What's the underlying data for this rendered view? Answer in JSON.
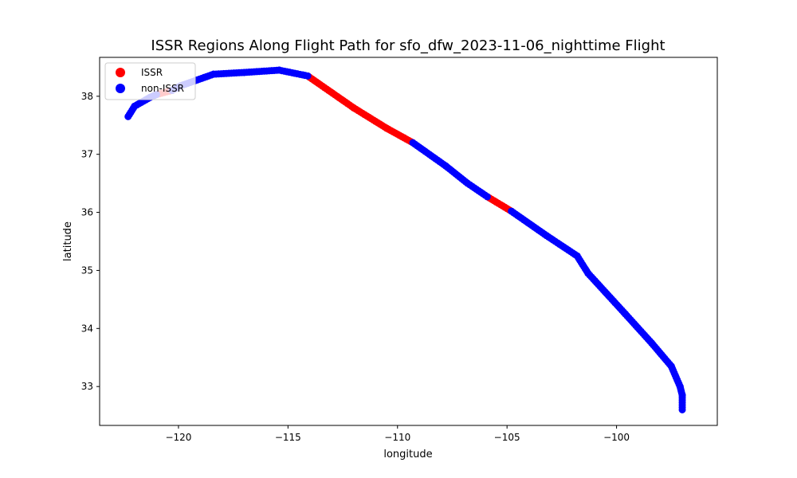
{
  "chart_data": {
    "type": "scatter",
    "title": "ISSR Regions Along Flight Path for sfo_dfw_2023-11-06_nighttime Flight",
    "xlabel": "longitude",
    "ylabel": "latitude",
    "xlim": [
      -123.6,
      -95.4
    ],
    "ylim": [
      32.33,
      38.67
    ],
    "xticks": [
      -120,
      -115,
      -110,
      -105,
      -100
    ],
    "xtick_labels": [
      "−120",
      "−115",
      "−110",
      "−105",
      "−100"
    ],
    "yticks": [
      33,
      34,
      35,
      36,
      37,
      38
    ],
    "ytick_labels": [
      "33",
      "34",
      "35",
      "36",
      "37",
      "38"
    ],
    "grid": false,
    "legend_position": "top-left",
    "series": [
      {
        "name": "ISSR",
        "color": "#ff0000",
        "segments": [
          [
            [
              -121.0,
              38.03
            ],
            [
              -120.3,
              38.1
            ]
          ],
          [
            [
              -114.1,
              38.35
            ],
            [
              -112.0,
              37.8
            ],
            [
              -110.5,
              37.45
            ],
            [
              -109.3,
              37.2
            ]
          ],
          [
            [
              -105.9,
              36.27
            ],
            [
              -104.8,
              36.02
            ]
          ]
        ]
      },
      {
        "name": "non-ISSR",
        "color": "#0000ff",
        "segments": [
          [
            [
              -122.3,
              37.65
            ],
            [
              -122.0,
              37.83
            ],
            [
              -121.3,
              37.98
            ],
            [
              -121.0,
              38.03
            ]
          ],
          [
            [
              -120.3,
              38.1
            ],
            [
              -119.9,
              38.18
            ],
            [
              -118.4,
              38.38
            ],
            [
              -117.0,
              38.41
            ],
            [
              -115.4,
              38.45
            ],
            [
              -114.1,
              38.35
            ]
          ],
          [
            [
              -109.3,
              37.2
            ],
            [
              -107.8,
              36.8
            ],
            [
              -106.8,
              36.5
            ],
            [
              -105.9,
              36.27
            ]
          ],
          [
            [
              -104.8,
              36.02
            ],
            [
              -103.2,
              35.6
            ],
            [
              -101.8,
              35.25
            ],
            [
              -101.3,
              34.95
            ],
            [
              -99.6,
              34.25
            ],
            [
              -98.4,
              33.75
            ],
            [
              -97.5,
              33.35
            ],
            [
              -97.1,
              33.0
            ],
            [
              -97.0,
              32.85
            ],
            [
              -97.0,
              32.6
            ]
          ]
        ]
      }
    ]
  }
}
